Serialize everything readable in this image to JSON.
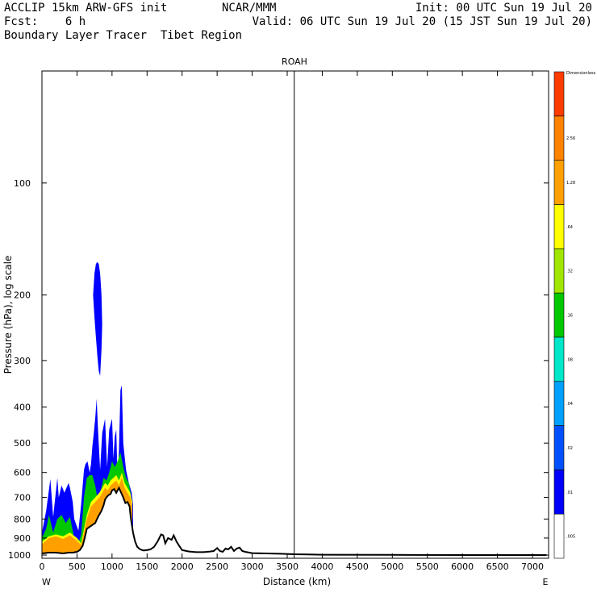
{
  "header": {
    "line1_left": "ACCLIP 15km ARW-GFS init",
    "line1_center": "NCAR/MMM",
    "line1_right": "Init: 00 UTC Sun 19 Jul 20",
    "line2_left": "Fcst:    6 h",
    "line2_right": "Valid: 06 UTC Sun 19 Jul 20 (15 JST Sun 19 Jul 20)",
    "line3_left": "Boundary Layer Tracer  Tibet Region"
  },
  "chart_data": {
    "type": "area",
    "panel_label": "ROAH",
    "xlabel": "Distance (km)",
    "ylabel": "Pressure (hPa), log scale",
    "x_ticks": [
      0,
      500,
      1000,
      1500,
      2000,
      2500,
      3000,
      3500,
      4000,
      4500,
      5000,
      5500,
      6000,
      6500,
      7000
    ],
    "x_tick_labels": [
      "0",
      "500",
      "1000",
      "1500",
      "2000",
      "2500",
      "3000",
      "3500",
      "4000",
      "4500",
      "5000",
      "5500",
      "6000",
      "6500",
      "7000"
    ],
    "xlim": [
      0,
      7230
    ],
    "y_ticks": [
      100,
      200,
      300,
      400,
      500,
      600,
      700,
      800,
      900,
      1000
    ],
    "y_tick_labels": [
      "100",
      "200",
      "300",
      "400",
      "500",
      "600",
      "700",
      "800",
      "900",
      "1000"
    ],
    "ylim": [
      1020,
      50
    ],
    "y_scale": "log",
    "left_end_label": "W",
    "right_end_label": "E",
    "vertical_line_x": 3600,
    "colorbar": {
      "title": "Dimensionless",
      "levels": [
        ".005",
        ".01",
        ".02",
        ".04",
        ".08",
        ".16",
        ".32",
        ".64",
        "1.28",
        "2.56"
      ],
      "colors": [
        "#ffffff",
        "#0000ff",
        "#0050ff",
        "#00a0ff",
        "#00e6c8",
        "#00c800",
        "#a0e600",
        "#ffff00",
        "#ffa000",
        "#ff8200",
        "#ff3c00"
      ]
    },
    "terrain": {
      "name": "surface pressure",
      "x": [
        0,
        100,
        200,
        300,
        380,
        440,
        500,
        540,
        580,
        610,
        640,
        680,
        720,
        760,
        800,
        850,
        880,
        900,
        920,
        950,
        980,
        1000,
        1030,
        1060,
        1100,
        1130,
        1160,
        1190,
        1220,
        1250,
        1270,
        1300,
        1330,
        1360,
        1400,
        1450,
        1500,
        1550,
        1600,
        1650,
        1700,
        1730,
        1760,
        1800,
        1850,
        1880,
        1920,
        1960,
        2000,
        2100,
        2200,
        2300,
        2400,
        2450,
        2500,
        2540,
        2580,
        2620,
        2660,
        2700,
        2740,
        2780,
        2820,
        2860,
        2900,
        3000,
        3200,
        3400,
        3600,
        3800,
        4000,
        5000,
        6000,
        7200
      ],
      "values": [
        990,
        985,
        985,
        990,
        985,
        985,
        980,
        970,
        945,
        900,
        850,
        840,
        830,
        820,
        790,
        760,
        735,
        710,
        700,
        690,
        685,
        670,
        665,
        680,
        660,
        680,
        700,
        725,
        720,
        740,
        800,
        870,
        920,
        950,
        965,
        972,
        970,
        965,
        950,
        920,
        880,
        885,
        930,
        900,
        910,
        885,
        920,
        945,
        970,
        978,
        982,
        982,
        978,
        975,
        958,
        975,
        980,
        960,
        965,
        950,
        975,
        960,
        955,
        975,
        980,
        988,
        990,
        992,
        995,
        996,
        998,
        999,
        1000,
        1000
      ]
    },
    "tracer_series": [
      {
        "level": ".01",
        "color": "#0000ff",
        "x": [
          0,
          60,
          90,
          120,
          160,
          220,
          240,
          280,
          320,
          380,
          400,
          440,
          460,
          520,
          560,
          600,
          620,
          650,
          680,
          700,
          720,
          740,
          760,
          780,
          800,
          830,
          860,
          900,
          930,
          960,
          1000,
          1020,
          1040,
          1060,
          1080,
          1100,
          1120,
          1140,
          1160,
          1200,
          1240,
          1280,
          1300
        ],
        "values": [
          870,
          760,
          690,
          625,
          790,
          620,
          700,
          650,
          680,
          640,
          660,
          720,
          800,
          860,
          730,
          590,
          570,
          560,
          600,
          570,
          510,
          470,
          430,
          380,
          460,
          590,
          470,
          430,
          580,
          460,
          430,
          550,
          480,
          460,
          640,
          520,
          360,
          350,
          500,
          590,
          640,
          680,
          730
        ]
      },
      {
        "level": ".16",
        "color": "#00c800",
        "x": [
          0,
          60,
          100,
          160,
          220,
          280,
          340,
          400,
          460,
          520,
          560,
          600,
          640,
          680,
          720,
          760,
          800,
          840,
          880,
          920,
          960,
          1000,
          1040,
          1080,
          1120,
          1160,
          1200,
          1240,
          1280
        ],
        "values": [
          900,
          850,
          780,
          870,
          800,
          780,
          820,
          790,
          900,
          930,
          880,
          700,
          620,
          610,
          610,
          650,
          720,
          670,
          620,
          630,
          600,
          560,
          580,
          560,
          530,
          580,
          620,
          640,
          710
        ]
      },
      {
        "level": ".64",
        "color": "#ffff00",
        "x": [
          0,
          100,
          200,
          300,
          400,
          500,
          560,
          600,
          640,
          700,
          760,
          820,
          860,
          900,
          940,
          980,
          1020,
          1060,
          1100,
          1140,
          1180,
          1220,
          1260,
          1290
        ],
        "values": [
          920,
          890,
          880,
          890,
          870,
          900,
          930,
          850,
          780,
          720,
          700,
          680,
          660,
          640,
          650,
          630,
          620,
          610,
          630,
          600,
          640,
          660,
          680,
          720
        ]
      },
      {
        "level": "1.28",
        "color": "#ffa000",
        "x": [
          0,
          100,
          200,
          300,
          400,
          500,
          560,
          600,
          640,
          700,
          760,
          820,
          860,
          900,
          940,
          980,
          1020,
          1060,
          1100,
          1140,
          1180,
          1220,
          1260,
          1290
        ],
        "values": [
          935,
          900,
          890,
          905,
          885,
          915,
          940,
          870,
          800,
          740,
          720,
          700,
          680,
          660,
          670,
          650,
          640,
          630,
          650,
          620,
          660,
          680,
          700,
          740
        ]
      }
    ],
    "upper_plume": {
      "level": ".01",
      "color": "#0000ff",
      "x": [
        730,
        750,
        770,
        790,
        810,
        830,
        850,
        860,
        860,
        850,
        830,
        810,
        790,
        770,
        750,
        730
      ],
      "values": [
        200,
        175,
        165,
        163,
        165,
        175,
        200,
        240,
        240,
        280,
        330,
        320,
        290,
        260,
        230,
        200
      ]
    }
  }
}
